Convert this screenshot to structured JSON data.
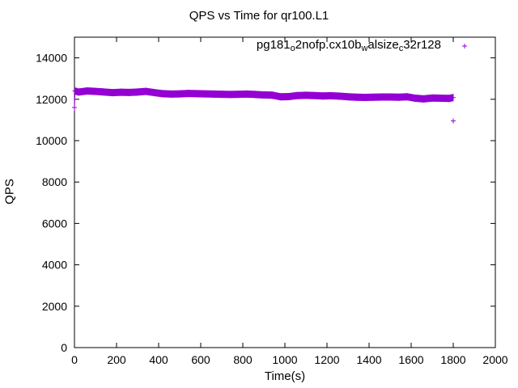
{
  "chart_data": {
    "type": "scatter",
    "title": "QPS vs Time for qr100.L1",
    "xlabel": "Time(s)",
    "ylabel": "QPS",
    "xlim": [
      0,
      2000
    ],
    "ylim": [
      0,
      15000
    ],
    "xticks": [
      0,
      200,
      400,
      600,
      800,
      1000,
      1200,
      1400,
      1600,
      1800,
      2000
    ],
    "yticks": [
      0,
      2000,
      4000,
      6000,
      8000,
      10000,
      12000,
      14000
    ],
    "grid": false,
    "legend_position": "top-right",
    "marker": "+",
    "color": "#9400d3",
    "series": [
      {
        "name": "pg181_o2nofp.cx10b_walsize_c32r128",
        "legend_parts": [
          {
            "text": "pg181",
            "sub": false
          },
          {
            "text": "o",
            "sub": true
          },
          {
            "text": "2nofp.cx10b",
            "sub": false
          },
          {
            "text": "w",
            "sub": true
          },
          {
            "text": "alsize",
            "sub": false
          },
          {
            "text": "c",
            "sub": true
          },
          {
            "text": "32r128",
            "sub": false
          }
        ],
        "x": [
          0,
          2,
          20,
          60,
          100,
          140,
          180,
          220,
          260,
          300,
          340,
          380,
          420,
          460,
          500,
          540,
          580,
          620,
          660,
          700,
          740,
          780,
          820,
          860,
          900,
          940,
          980,
          1020,
          1060,
          1100,
          1140,
          1180,
          1220,
          1260,
          1300,
          1340,
          1380,
          1420,
          1460,
          1500,
          1540,
          1580,
          1620,
          1660,
          1700,
          1740,
          1780,
          1800,
          1800
        ],
        "y": [
          11600,
          12400,
          12350,
          12400,
          12380,
          12350,
          12320,
          12340,
          12330,
          12350,
          12380,
          12320,
          12270,
          12250,
          12260,
          12280,
          12270,
          12260,
          12250,
          12240,
          12230,
          12240,
          12250,
          12230,
          12210,
          12200,
          12120,
          12130,
          12180,
          12190,
          12180,
          12160,
          12170,
          12150,
          12120,
          12100,
          12090,
          12100,
          12110,
          12110,
          12100,
          12120,
          12050,
          12020,
          12060,
          12050,
          12040,
          12080,
          10950
        ]
      }
    ]
  }
}
